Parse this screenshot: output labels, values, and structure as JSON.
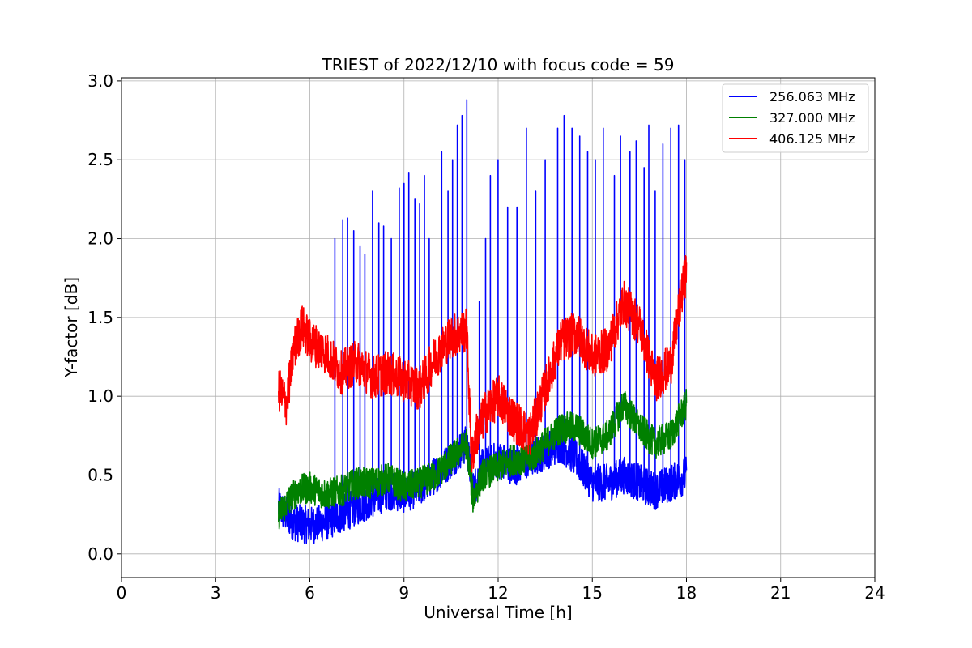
{
  "chart_data": {
    "type": "line",
    "title": "TRIEST of 2022/12/10 with focus code = 59",
    "xlabel": "Universal Time [h]",
    "ylabel": "Y-factor [dB]",
    "xlim": [
      0,
      24
    ],
    "ylim": [
      -0.15,
      3.02
    ],
    "xticks": [
      0,
      3,
      6,
      9,
      12,
      15,
      18,
      21,
      24
    ],
    "xtick_labels": [
      "0",
      "3",
      "6",
      "9",
      "12",
      "15",
      "18",
      "21",
      "24"
    ],
    "yticks": [
      0.0,
      0.5,
      1.0,
      1.5,
      2.0,
      2.5,
      3.0
    ],
    "ytick_labels": [
      "0.0",
      "0.5",
      "1.0",
      "1.5",
      "2.0",
      "2.5",
      "3.0"
    ],
    "grid": true,
    "legend_position": "top-right",
    "series": [
      {
        "name": "256.063 MHz",
        "color": "#0000ff",
        "baseline": [
          [
            5.0,
            0.3
          ],
          [
            5.5,
            0.2
          ],
          [
            6.0,
            0.18
          ],
          [
            6.5,
            0.2
          ],
          [
            7.0,
            0.25
          ],
          [
            7.5,
            0.3
          ],
          [
            8.0,
            0.35
          ],
          [
            8.5,
            0.4
          ],
          [
            9.0,
            0.38
          ],
          [
            9.5,
            0.42
          ],
          [
            10.0,
            0.5
          ],
          [
            10.5,
            0.6
          ],
          [
            11.0,
            0.7
          ],
          [
            11.2,
            0.4
          ],
          [
            11.5,
            0.55
          ],
          [
            12.0,
            0.6
          ],
          [
            12.5,
            0.55
          ],
          [
            13.0,
            0.6
          ],
          [
            13.5,
            0.65
          ],
          [
            14.0,
            0.7
          ],
          [
            14.5,
            0.6
          ],
          [
            15.0,
            0.45
          ],
          [
            15.5,
            0.45
          ],
          [
            16.0,
            0.5
          ],
          [
            16.5,
            0.45
          ],
          [
            17.0,
            0.4
          ],
          [
            17.5,
            0.45
          ],
          [
            18.0,
            0.5
          ]
        ],
        "spikes": [
          [
            6.8,
            2.0
          ],
          [
            7.05,
            2.12
          ],
          [
            7.2,
            2.13
          ],
          [
            7.4,
            2.05
          ],
          [
            7.6,
            1.95
          ],
          [
            7.75,
            1.9
          ],
          [
            8.0,
            2.3
          ],
          [
            8.2,
            2.1
          ],
          [
            8.35,
            2.08
          ],
          [
            8.6,
            2.0
          ],
          [
            8.85,
            2.32
          ],
          [
            9.0,
            2.35
          ],
          [
            9.15,
            2.42
          ],
          [
            9.35,
            2.25
          ],
          [
            9.5,
            2.22
          ],
          [
            9.65,
            2.4
          ],
          [
            9.8,
            2.0
          ],
          [
            10.2,
            2.55
          ],
          [
            10.4,
            2.3
          ],
          [
            10.55,
            2.5
          ],
          [
            10.7,
            2.72
          ],
          [
            10.85,
            2.78
          ],
          [
            11.0,
            2.88
          ],
          [
            11.4,
            1.6
          ],
          [
            11.6,
            2.0
          ],
          [
            11.75,
            2.4
          ],
          [
            12.0,
            2.5
          ],
          [
            12.3,
            2.2
          ],
          [
            12.6,
            2.2
          ],
          [
            12.9,
            2.7
          ],
          [
            13.2,
            2.3
          ],
          [
            13.5,
            2.5
          ],
          [
            13.9,
            2.7
          ],
          [
            14.1,
            2.78
          ],
          [
            14.35,
            2.7
          ],
          [
            14.6,
            2.65
          ],
          [
            14.85,
            2.55
          ],
          [
            15.1,
            2.5
          ],
          [
            15.35,
            2.7
          ],
          [
            15.7,
            2.4
          ],
          [
            15.9,
            2.65
          ],
          [
            16.2,
            2.55
          ],
          [
            16.4,
            2.62
          ],
          [
            16.65,
            2.45
          ],
          [
            16.8,
            2.72
          ],
          [
            17.0,
            2.3
          ],
          [
            17.25,
            2.6
          ],
          [
            17.5,
            2.7
          ],
          [
            17.75,
            2.72
          ],
          [
            17.95,
            2.5
          ]
        ]
      },
      {
        "name": "327.000 MHz",
        "color": "#008000",
        "baseline": [
          [
            5.0,
            0.25
          ],
          [
            5.3,
            0.33
          ],
          [
            5.6,
            0.4
          ],
          [
            6.0,
            0.42
          ],
          [
            6.5,
            0.38
          ],
          [
            7.0,
            0.4
          ],
          [
            7.5,
            0.45
          ],
          [
            8.0,
            0.45
          ],
          [
            8.5,
            0.48
          ],
          [
            9.0,
            0.42
          ],
          [
            9.5,
            0.45
          ],
          [
            10.0,
            0.5
          ],
          [
            10.5,
            0.6
          ],
          [
            11.0,
            0.7
          ],
          [
            11.2,
            0.35
          ],
          [
            11.5,
            0.5
          ],
          [
            12.0,
            0.55
          ],
          [
            12.5,
            0.6
          ],
          [
            13.0,
            0.6
          ],
          [
            13.5,
            0.7
          ],
          [
            14.0,
            0.8
          ],
          [
            14.5,
            0.8
          ],
          [
            15.0,
            0.7
          ],
          [
            15.5,
            0.75
          ],
          [
            16.0,
            0.95
          ],
          [
            16.5,
            0.8
          ],
          [
            17.0,
            0.7
          ],
          [
            17.5,
            0.75
          ],
          [
            18.0,
            0.95
          ]
        ]
      },
      {
        "name": "406.125 MHz",
        "color": "#ff0000",
        "baseline": [
          [
            5.0,
            1.05
          ],
          [
            5.25,
            0.95
          ],
          [
            5.5,
            1.3
          ],
          [
            5.75,
            1.45
          ],
          [
            6.0,
            1.35
          ],
          [
            6.5,
            1.28
          ],
          [
            7.0,
            1.15
          ],
          [
            7.5,
            1.22
          ],
          [
            8.0,
            1.12
          ],
          [
            8.5,
            1.15
          ],
          [
            9.0,
            1.1
          ],
          [
            9.5,
            1.05
          ],
          [
            10.0,
            1.25
          ],
          [
            10.5,
            1.38
          ],
          [
            11.0,
            1.42
          ],
          [
            11.15,
            0.6
          ],
          [
            11.3,
            0.75
          ],
          [
            11.6,
            0.9
          ],
          [
            12.0,
            1.0
          ],
          [
            12.5,
            0.85
          ],
          [
            13.0,
            0.75
          ],
          [
            13.5,
            1.05
          ],
          [
            14.0,
            1.35
          ],
          [
            14.5,
            1.4
          ],
          [
            15.0,
            1.25
          ],
          [
            15.5,
            1.3
          ],
          [
            16.0,
            1.6
          ],
          [
            16.5,
            1.45
          ],
          [
            17.0,
            1.1
          ],
          [
            17.5,
            1.2
          ],
          [
            17.8,
            1.6
          ],
          [
            18.0,
            1.8
          ]
        ]
      }
    ]
  }
}
